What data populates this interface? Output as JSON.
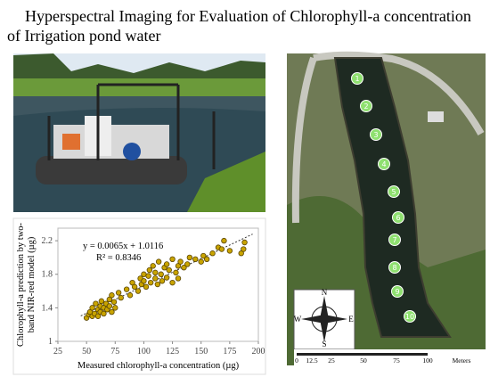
{
  "header": {
    "title_lines": [
      "Hyperspectral Imaging for Evaluation of Chlorophyll-a concentration",
      "of Irrigation pond water"
    ]
  },
  "chart_data": {
    "type": "scatter",
    "x": [
      50,
      52,
      53,
      55,
      55,
      57,
      58,
      60,
      60,
      62,
      62,
      63,
      65,
      65,
      67,
      68,
      70,
      70,
      72,
      72,
      74,
      75,
      78,
      80,
      85,
      88,
      90,
      92,
      95,
      97,
      98,
      100,
      100,
      102,
      104,
      105,
      106,
      108,
      110,
      110,
      112,
      113,
      115,
      116,
      118,
      120,
      120,
      122,
      125,
      125,
      128,
      130,
      130,
      132,
      135,
      138,
      140,
      145,
      150,
      152,
      155,
      160,
      165,
      168,
      170,
      175,
      185,
      187,
      188
    ],
    "values": [
      1.28,
      1.32,
      1.35,
      1.3,
      1.4,
      1.33,
      1.45,
      1.38,
      1.3,
      1.42,
      1.35,
      1.48,
      1.4,
      1.33,
      1.45,
      1.38,
      1.5,
      1.42,
      1.35,
      1.55,
      1.47,
      1.4,
      1.58,
      1.52,
      1.62,
      1.55,
      1.7,
      1.65,
      1.6,
      1.75,
      1.68,
      1.72,
      1.8,
      1.65,
      1.78,
      1.85,
      1.7,
      1.9,
      1.75,
      1.82,
      1.68,
      1.95,
      1.8,
      1.72,
      1.88,
      1.76,
      1.92,
      1.85,
      1.7,
      1.98,
      1.82,
      1.9,
      1.75,
      1.95,
      1.88,
      1.92,
      2.0,
      1.98,
      1.95,
      2.02,
      1.98,
      2.05,
      2.12,
      2.1,
      2.2,
      2.08,
      2.05,
      2.1,
      2.18
    ],
    "color": "#c9a400",
    "xlabel": "Measured chlorophyll-a concentration (µg)",
    "ylabel_lines": [
      "Chlorophyll-a prediction by two-",
      "band NIR-red model (µg)"
    ],
    "xlim": [
      25,
      200
    ],
    "xticks": [
      25,
      50,
      75,
      100,
      125,
      150,
      175,
      200
    ],
    "ylim": [
      1,
      2.35
    ],
    "yticks": [
      1,
      1.4,
      1.8,
      2.2
    ],
    "trendline": {
      "x": [
        45,
        195
      ],
      "values": [
        1.304,
        2.279
      ]
    },
    "annotations": [
      "y = 0.0065x + 1.0116",
      "R² = 0.8346"
    ]
  },
  "map": {
    "markers": [
      "1",
      "2",
      "3",
      "4",
      "5",
      "6",
      "7",
      "8",
      "9",
      "10"
    ],
    "compass": [
      "N",
      "S",
      "E",
      "W"
    ],
    "scale_labels": [
      "0",
      "12.5",
      "25",
      "50",
      "75",
      "100"
    ],
    "scale_unit": "Meters"
  }
}
